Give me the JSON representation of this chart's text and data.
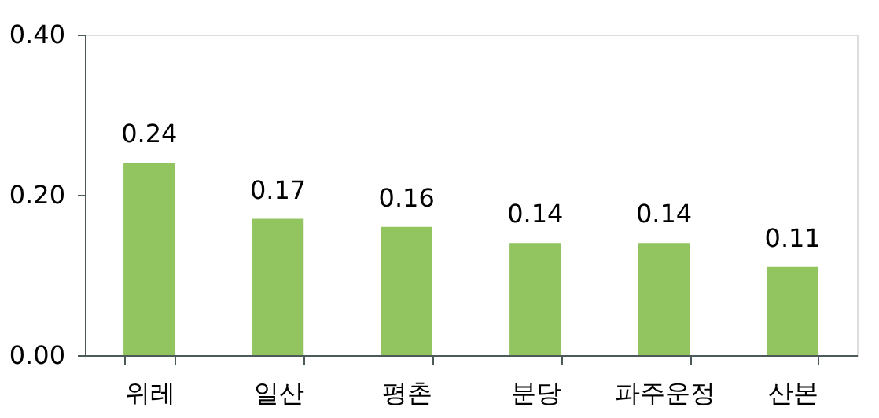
{
  "chart_data": {
    "type": "bar",
    "categories": [
      "위레",
      "일산",
      "평촌",
      "분당",
      "파주운정",
      "산본"
    ],
    "values": [
      0.24,
      0.17,
      0.16,
      0.14,
      0.14,
      0.11
    ],
    "color": "#92c560",
    "ylim": [
      0,
      0.4
    ],
    "yticks": [
      {
        "value": 0,
        "label": "0.00"
      },
      {
        "value": 0.2,
        "label": "0.20"
      },
      {
        "value": 0.4,
        "label": "0.40"
      }
    ],
    "data_labels": true,
    "grid": false
  }
}
